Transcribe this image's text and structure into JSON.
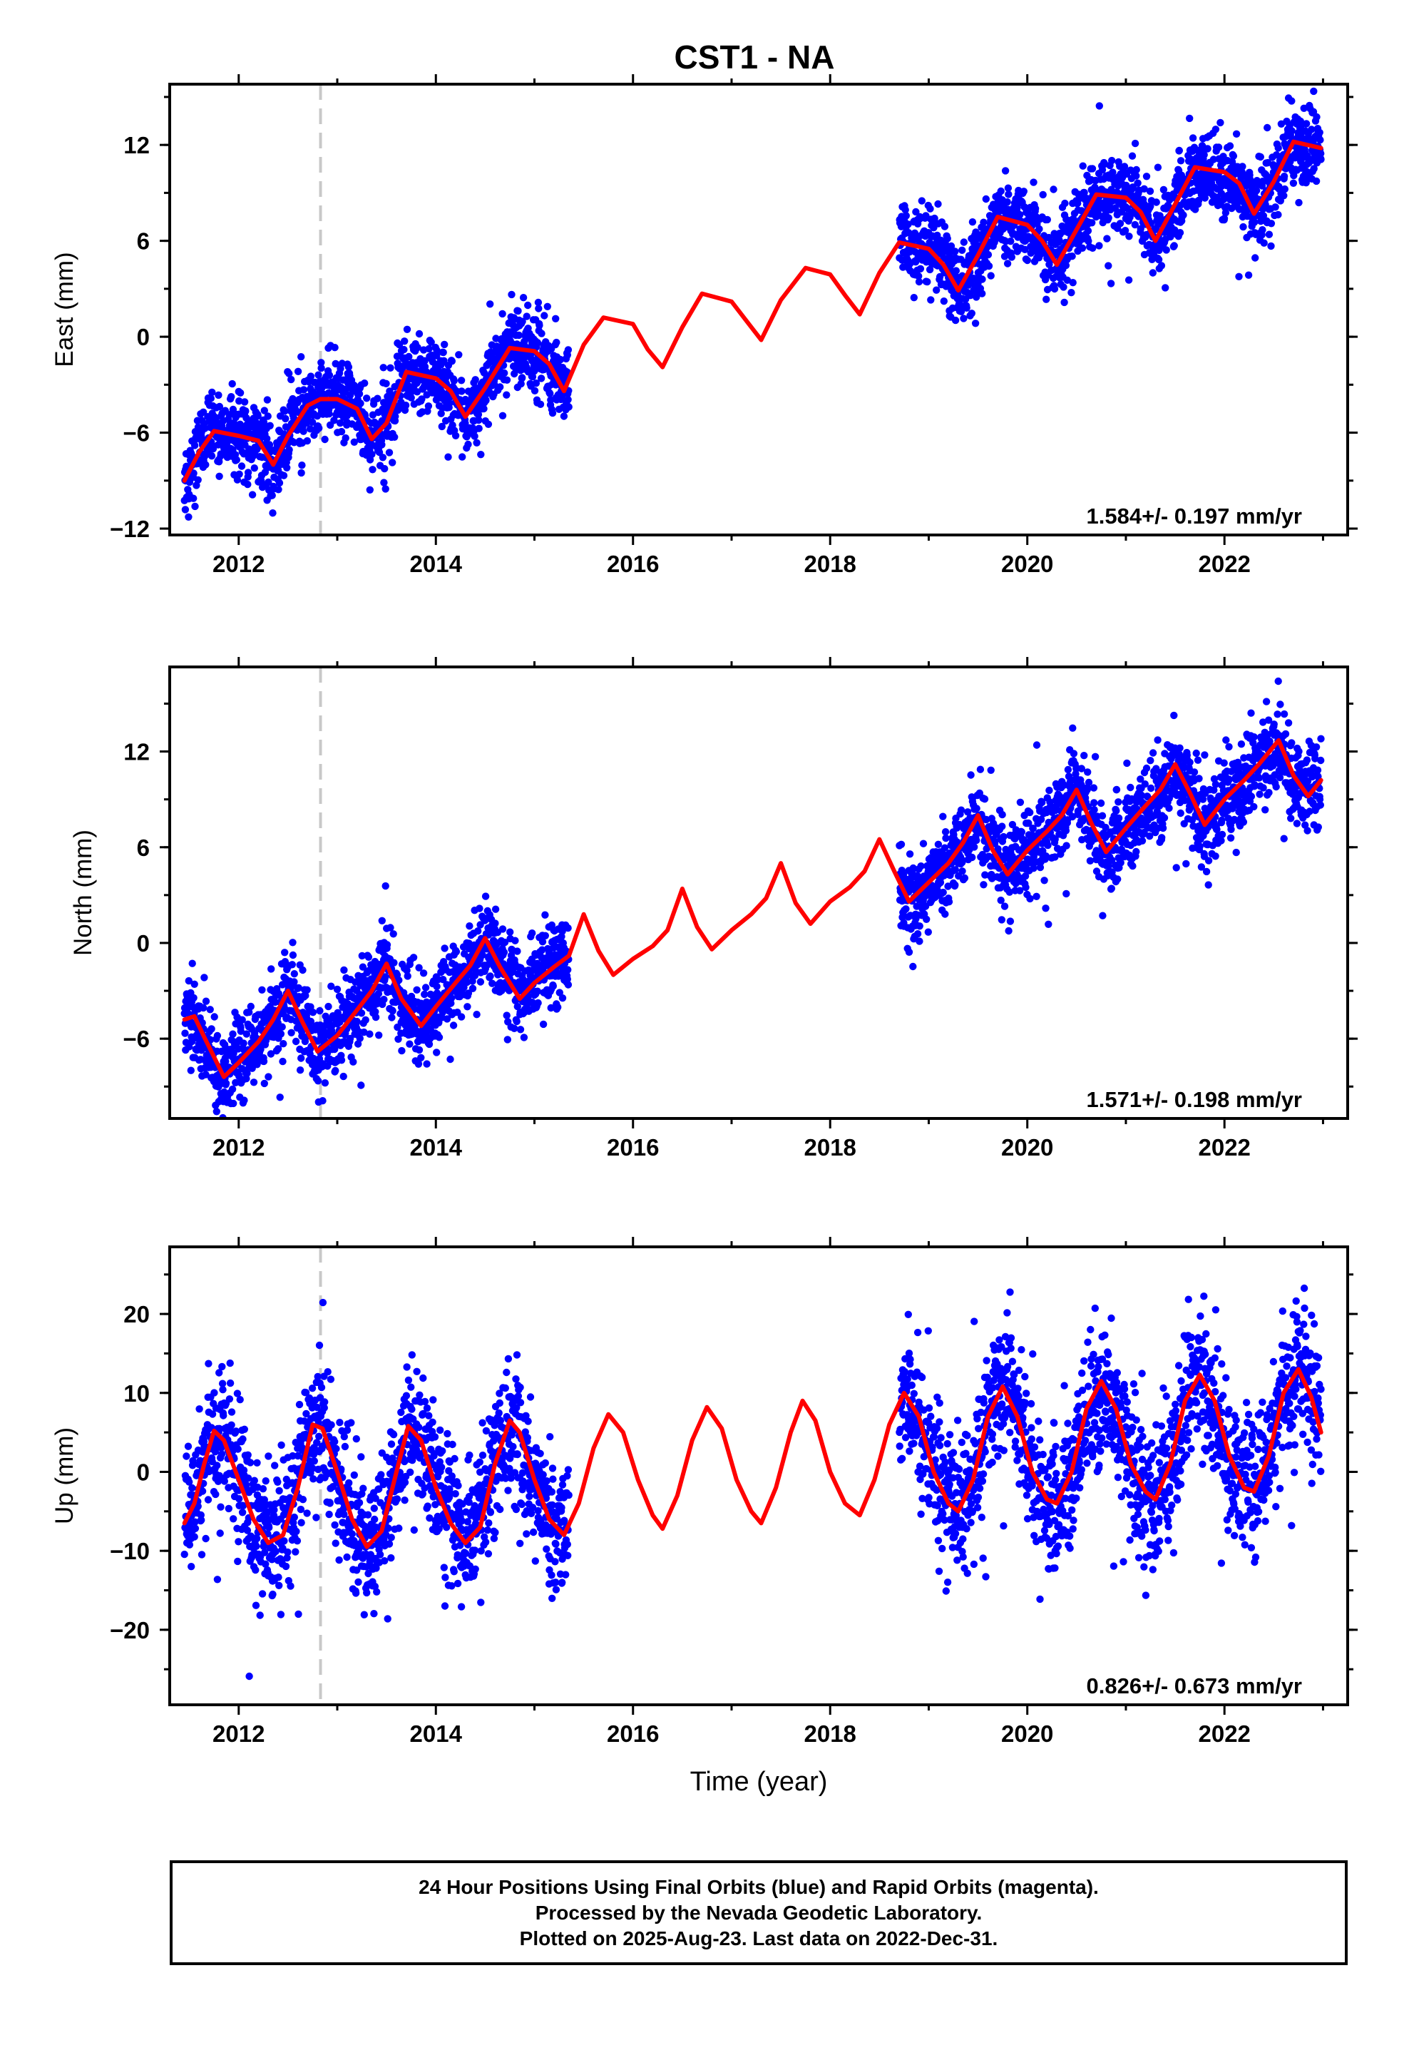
{
  "chart_data": {
    "type": "scatter",
    "title": "CST1 - NA",
    "xlabel": "Time (year)",
    "xlim": [
      2011.3,
      2023.25
    ],
    "x_ticks": [
      "2012",
      "2014",
      "2016",
      "2018",
      "2020",
      "2022"
    ],
    "event_marker_year": 2012.83,
    "legend_colors": {
      "data": "#0000ff",
      "model": "#ff0000",
      "event": "#c8c8c8"
    },
    "data_gaps": [
      [
        2015.35,
        2018.7
      ]
    ],
    "panels": [
      {
        "ylabel": "East (mm)",
        "ylim": [
          -12.4,
          15.8
        ],
        "y_ticks": [
          "12",
          "6",
          "0",
          "-6",
          "-12"
        ],
        "rate_label": "1.584+/- 0.197 mm/yr",
        "rate_mm_per_yr": 1.584,
        "rate_sigma": 0.197,
        "series": [
          {
            "style": "scatter",
            "data_start": 2011.45,
            "data_end": 2022.98,
            "scatter_sd": 1.2
          },
          {
            "style": "line",
            "points": [
              [
                2011.45,
                -9.0
              ],
              [
                2011.6,
                -7.2
              ],
              [
                2011.75,
                -5.9
              ],
              [
                2012.0,
                -6.2
              ],
              [
                2012.2,
                -6.5
              ],
              [
                2012.35,
                -8.0
              ],
              [
                2012.5,
                -6.2
              ],
              [
                2012.7,
                -4.3
              ],
              [
                2012.83,
                -3.9
              ],
              [
                2013.0,
                -3.9
              ],
              [
                2013.2,
                -4.5
              ],
              [
                2013.35,
                -6.4
              ],
              [
                2013.5,
                -5.4
              ],
              [
                2013.7,
                -2.2
              ],
              [
                2014.0,
                -2.6
              ],
              [
                2014.15,
                -3.4
              ],
              [
                2014.3,
                -5.0
              ],
              [
                2014.5,
                -3.2
              ],
              [
                2014.75,
                -0.7
              ],
              [
                2015.0,
                -0.9
              ],
              [
                2015.15,
                -1.7
              ],
              [
                2015.3,
                -3.4
              ],
              [
                2015.5,
                -0.5
              ],
              [
                2015.7,
                1.2
              ],
              [
                2016.0,
                0.8
              ],
              [
                2016.15,
                -0.8
              ],
              [
                2016.3,
                -1.9
              ],
              [
                2016.5,
                0.6
              ],
              [
                2016.7,
                2.7
              ],
              [
                2017.0,
                2.2
              ],
              [
                2017.15,
                1.0
              ],
              [
                2017.3,
                -0.2
              ],
              [
                2017.5,
                2.3
              ],
              [
                2017.75,
                4.3
              ],
              [
                2018.0,
                3.9
              ],
              [
                2018.15,
                2.6
              ],
              [
                2018.3,
                1.4
              ],
              [
                2018.5,
                4.0
              ],
              [
                2018.7,
                5.9
              ],
              [
                2019.0,
                5.5
              ],
              [
                2019.15,
                4.5
              ],
              [
                2019.3,
                2.9
              ],
              [
                2019.5,
                5.1
              ],
              [
                2019.7,
                7.5
              ],
              [
                2020.0,
                7.0
              ],
              [
                2020.15,
                6.0
              ],
              [
                2020.3,
                4.5
              ],
              [
                2020.5,
                6.7
              ],
              [
                2020.7,
                8.9
              ],
              [
                2021.0,
                8.7
              ],
              [
                2021.15,
                7.8
              ],
              [
                2021.3,
                6.0
              ],
              [
                2021.5,
                8.3
              ],
              [
                2021.7,
                10.6
              ],
              [
                2022.0,
                10.3
              ],
              [
                2022.15,
                9.6
              ],
              [
                2022.3,
                7.7
              ],
              [
                2022.5,
                9.7
              ],
              [
                2022.7,
                12.2
              ],
              [
                2022.98,
                11.8
              ]
            ]
          }
        ]
      },
      {
        "ylabel": "North (mm)",
        "ylim": [
          -11.0,
          17.3
        ],
        "y_ticks": [
          "12",
          "6",
          "0",
          "-6"
        ],
        "rate_label": "1.571+/- 0.198 mm/yr",
        "rate_mm_per_yr": 1.571,
        "rate_sigma": 0.198,
        "series": [
          {
            "style": "scatter",
            "data_start": 2011.45,
            "data_end": 2022.98,
            "scatter_sd": 1.3
          },
          {
            "style": "line",
            "points": [
              [
                2011.45,
                -4.8
              ],
              [
                2011.55,
                -4.6
              ],
              [
                2011.65,
                -5.9
              ],
              [
                2011.85,
                -8.4
              ],
              [
                2012.0,
                -7.5
              ],
              [
                2012.2,
                -6.2
              ],
              [
                2012.35,
                -4.8
              ],
              [
                2012.5,
                -3.0
              ],
              [
                2012.65,
                -5.0
              ],
              [
                2012.8,
                -6.8
              ],
              [
                2013.0,
                -5.8
              ],
              [
                2013.2,
                -4.2
              ],
              [
                2013.35,
                -3.0
              ],
              [
                2013.5,
                -1.3
              ],
              [
                2013.65,
                -3.5
              ],
              [
                2013.85,
                -5.2
              ],
              [
                2014.0,
                -4.0
              ],
              [
                2014.2,
                -2.5
              ],
              [
                2014.35,
                -1.4
              ],
              [
                2014.5,
                0.3
              ],
              [
                2014.65,
                -1.5
              ],
              [
                2014.85,
                -3.5
              ],
              [
                2015.0,
                -2.5
              ],
              [
                2015.2,
                -1.5
              ],
              [
                2015.35,
                -0.8
              ],
              [
                2015.5,
                1.8
              ],
              [
                2015.65,
                -0.5
              ],
              [
                2015.8,
                -2.0
              ],
              [
                2016.0,
                -1.0
              ],
              [
                2016.2,
                -0.2
              ],
              [
                2016.35,
                0.8
              ],
              [
                2016.5,
                3.4
              ],
              [
                2016.65,
                1.0
              ],
              [
                2016.8,
                -0.4
              ],
              [
                2017.0,
                0.8
              ],
              [
                2017.2,
                1.8
              ],
              [
                2017.35,
                2.8
              ],
              [
                2017.5,
                5.0
              ],
              [
                2017.65,
                2.5
              ],
              [
                2017.8,
                1.2
              ],
              [
                2018.0,
                2.6
              ],
              [
                2018.2,
                3.5
              ],
              [
                2018.35,
                4.5
              ],
              [
                2018.5,
                6.5
              ],
              [
                2018.65,
                4.5
              ],
              [
                2018.8,
                2.6
              ],
              [
                2019.0,
                3.8
              ],
              [
                2019.2,
                5.0
              ],
              [
                2019.35,
                6.3
              ],
              [
                2019.5,
                8.0
              ],
              [
                2019.65,
                5.8
              ],
              [
                2019.8,
                4.3
              ],
              [
                2020.0,
                5.8
              ],
              [
                2020.2,
                7.0
              ],
              [
                2020.35,
                8.0
              ],
              [
                2020.5,
                9.6
              ],
              [
                2020.65,
                7.5
              ],
              [
                2020.8,
                5.7
              ],
              [
                2021.0,
                7.2
              ],
              [
                2021.2,
                8.6
              ],
              [
                2021.35,
                9.6
              ],
              [
                2021.5,
                11.2
              ],
              [
                2021.65,
                9.4
              ],
              [
                2021.8,
                7.4
              ],
              [
                2022.0,
                9.0
              ],
              [
                2022.2,
                10.2
              ],
              [
                2022.35,
                11.2
              ],
              [
                2022.55,
                12.7
              ],
              [
                2022.7,
                10.5
              ],
              [
                2022.85,
                9.2
              ],
              [
                2022.98,
                10.2
              ]
            ]
          }
        ]
      },
      {
        "ylabel": "Up (mm)",
        "ylim": [
          -29.5,
          28.5
        ],
        "y_ticks": [
          "20",
          "10",
          "0",
          "-10",
          "-20"
        ],
        "rate_label": "0.826+/- 0.673 mm/yr",
        "rate_mm_per_yr": 0.826,
        "rate_sigma": 0.673,
        "series": [
          {
            "style": "scatter",
            "data_start": 2011.45,
            "data_end": 2022.98,
            "scatter_sd": 4.2
          },
          {
            "style": "line",
            "points": [
              [
                2011.45,
                -6.5
              ],
              [
                2011.55,
                -4.0
              ],
              [
                2011.65,
                1.0
              ],
              [
                2011.75,
                5.2
              ],
              [
                2011.85,
                4.0
              ],
              [
                2012.0,
                -1.0
              ],
              [
                2012.15,
                -6.0
              ],
              [
                2012.3,
                -9.0
              ],
              [
                2012.45,
                -8.0
              ],
              [
                2012.6,
                -2.0
              ],
              [
                2012.75,
                6.0
              ],
              [
                2012.85,
                5.5
              ],
              [
                2013.0,
                0.0
              ],
              [
                2013.15,
                -6.0
              ],
              [
                2013.3,
                -9.5
              ],
              [
                2013.45,
                -7.5
              ],
              [
                2013.6,
                0.0
              ],
              [
                2013.72,
                5.8
              ],
              [
                2013.85,
                4.0
              ],
              [
                2014.0,
                -2.0
              ],
              [
                2014.15,
                -6.5
              ],
              [
                2014.3,
                -9.0
              ],
              [
                2014.45,
                -7.0
              ],
              [
                2014.6,
                1.0
              ],
              [
                2014.75,
                6.5
              ],
              [
                2014.85,
                5.0
              ],
              [
                2015.0,
                -1.0
              ],
              [
                2015.15,
                -6.0
              ],
              [
                2015.3,
                -8.0
              ],
              [
                2015.45,
                -4.0
              ],
              [
                2015.6,
                3.0
              ],
              [
                2015.75,
                7.3
              ],
              [
                2015.9,
                5.0
              ],
              [
                2016.05,
                -1.0
              ],
              [
                2016.2,
                -5.5
              ],
              [
                2016.3,
                -7.2
              ],
              [
                2016.45,
                -3.0
              ],
              [
                2016.6,
                4.0
              ],
              [
                2016.75,
                8.2
              ],
              [
                2016.9,
                5.5
              ],
              [
                2017.05,
                -1.0
              ],
              [
                2017.2,
                -5.0
              ],
              [
                2017.3,
                -6.5
              ],
              [
                2017.45,
                -2.0
              ],
              [
                2017.6,
                5.0
              ],
              [
                2017.72,
                9.0
              ],
              [
                2017.85,
                6.5
              ],
              [
                2018.0,
                0.0
              ],
              [
                2018.15,
                -4.0
              ],
              [
                2018.3,
                -5.5
              ],
              [
                2018.45,
                -1.0
              ],
              [
                2018.6,
                6.0
              ],
              [
                2018.75,
                10.0
              ],
              [
                2018.9,
                7.0
              ],
              [
                2019.05,
                0.0
              ],
              [
                2019.2,
                -4.0
              ],
              [
                2019.3,
                -5.0
              ],
              [
                2019.45,
                -1.0
              ],
              [
                2019.6,
                7.0
              ],
              [
                2019.75,
                10.8
              ],
              [
                2019.9,
                7.0
              ],
              [
                2020.05,
                0.0
              ],
              [
                2020.2,
                -3.5
              ],
              [
                2020.3,
                -4.0
              ],
              [
                2020.45,
                0.0
              ],
              [
                2020.6,
                8.0
              ],
              [
                2020.75,
                11.5
              ],
              [
                2020.9,
                8.0
              ],
              [
                2021.05,
                1.0
              ],
              [
                2021.2,
                -2.5
              ],
              [
                2021.3,
                -3.5
              ],
              [
                2021.45,
                1.0
              ],
              [
                2021.6,
                9.0
              ],
              [
                2021.75,
                12.3
              ],
              [
                2021.9,
                9.0
              ],
              [
                2022.05,
                2.0
              ],
              [
                2022.2,
                -2.0
              ],
              [
                2022.3,
                -2.5
              ],
              [
                2022.45,
                2.0
              ],
              [
                2022.6,
                10.0
              ],
              [
                2022.75,
                13.0
              ],
              [
                2022.88,
                9.5
              ],
              [
                2022.98,
                5.0
              ]
            ]
          }
        ]
      }
    ]
  },
  "footer": {
    "line1": "24 Hour Positions Using Final Orbits (blue) and Rapid Orbits (magenta).",
    "line2": "Processed by the Nevada Geodetic Laboratory.",
    "line3": "Plotted on 2025-Aug-23. Last data on 2022-Dec-31."
  }
}
